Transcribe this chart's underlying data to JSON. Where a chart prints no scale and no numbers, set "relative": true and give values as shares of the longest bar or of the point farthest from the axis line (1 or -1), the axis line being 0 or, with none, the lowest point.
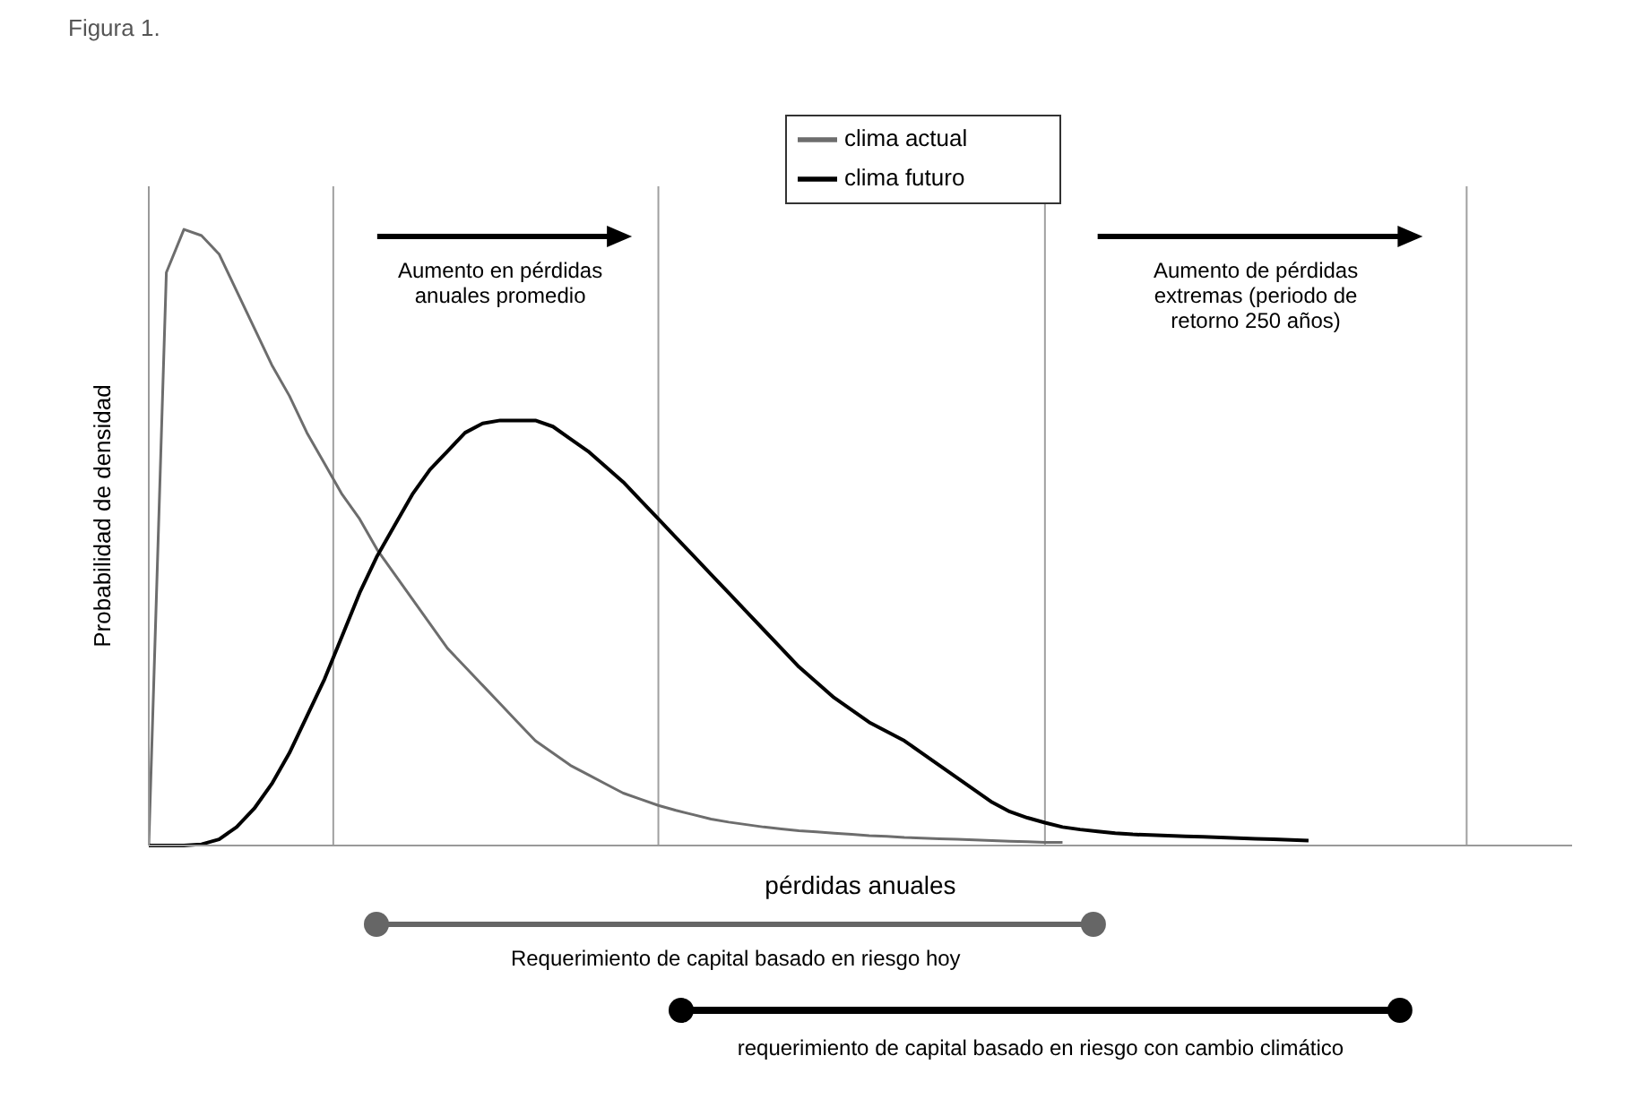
{
  "chart_data": {
    "type": "line",
    "title": "Figura 1.",
    "xlabel": "pérdidas anuales",
    "ylabel": "Probabilidad de densidad",
    "relative": true,
    "legend": "top",
    "grid": "x",
    "marker": "none",
    "line_style": "solid",
    "categories": [
      null,
      null,
      null,
      null,
      null,
      null,
      null,
      null,
      null,
      null,
      null,
      null,
      null,
      null,
      null,
      null,
      null,
      null,
      null,
      null,
      null,
      null,
      null,
      null,
      null,
      null,
      null,
      null,
      null,
      null,
      null,
      null,
      null,
      null,
      null,
      null,
      null,
      null,
      null,
      null,
      null,
      null,
      null,
      null,
      null,
      null,
      null,
      null,
      null,
      null,
      null,
      null,
      null,
      null,
      null,
      null,
      null,
      null,
      null,
      null,
      null,
      null,
      null,
      null,
      null,
      null,
      null,
      null,
      null,
      null,
      null,
      null,
      null,
      null,
      null,
      null,
      null,
      null,
      null,
      null,
      null,
      null
    ],
    "series": [
      {
        "name": "clima actual",
        "color": "#6d6d6d",
        "values": [
          0,
          0.93,
          1.0,
          0.99,
          0.96,
          0.9,
          0.84,
          0.78,
          0.73,
          0.67,
          0.62,
          0.57,
          0.53,
          0.48,
          0.44,
          0.4,
          0.36,
          0.32,
          0.29,
          0.26,
          0.23,
          0.2,
          0.17,
          0.15,
          0.13,
          0.115,
          0.1,
          0.085,
          0.075,
          0.065,
          0.057,
          0.05,
          0.043,
          0.038,
          0.034,
          0.03,
          0.027,
          0.024,
          0.022,
          0.02,
          0.018,
          0.016,
          0.015,
          0.013,
          0.012,
          0.011,
          0.01,
          0.009,
          0.008,
          0.007,
          0.006,
          0.005,
          0.005,
          null,
          null,
          null,
          null,
          null,
          null,
          null,
          null,
          null,
          null,
          null,
          null,
          null,
          null,
          null,
          null,
          null,
          null,
          null,
          null,
          null,
          null,
          null,
          null,
          null,
          null,
          null,
          null,
          null
        ]
      },
      {
        "name": "clima futuro",
        "color": "#000000",
        "values": [
          0,
          0,
          0,
          0.002,
          0.01,
          0.03,
          0.06,
          0.1,
          0.15,
          0.21,
          0.27,
          0.34,
          0.41,
          0.47,
          0.52,
          0.57,
          0.61,
          0.64,
          0.67,
          0.685,
          0.69,
          0.69,
          0.69,
          0.68,
          0.66,
          0.64,
          0.615,
          0.59,
          0.56,
          0.53,
          0.5,
          0.47,
          0.44,
          0.41,
          0.38,
          0.35,
          0.32,
          0.29,
          0.265,
          0.24,
          0.22,
          0.2,
          0.185,
          0.17,
          0.15,
          0.13,
          0.11,
          0.09,
          0.07,
          0.055,
          0.045,
          0.037,
          0.03,
          0.026,
          0.023,
          0.02,
          0.018,
          0.017,
          0.016,
          0.015,
          0.014,
          0.013,
          0.012,
          0.011,
          0.01,
          0.009,
          0.008,
          null,
          null,
          null,
          null,
          null,
          null,
          null,
          null,
          null,
          null,
          null,
          null,
          null,
          null,
          null
        ]
      }
    ],
    "annotations": [
      "Aumento en pérdidas anuales promedio",
      "Aumento de pérdidas extremas (periodo de retorno 250 años)",
      "Requerimiento de capital basado en riesgo hoy",
      "requerimiento de capital basado en riesgo con cambio climático"
    ]
  }
}
